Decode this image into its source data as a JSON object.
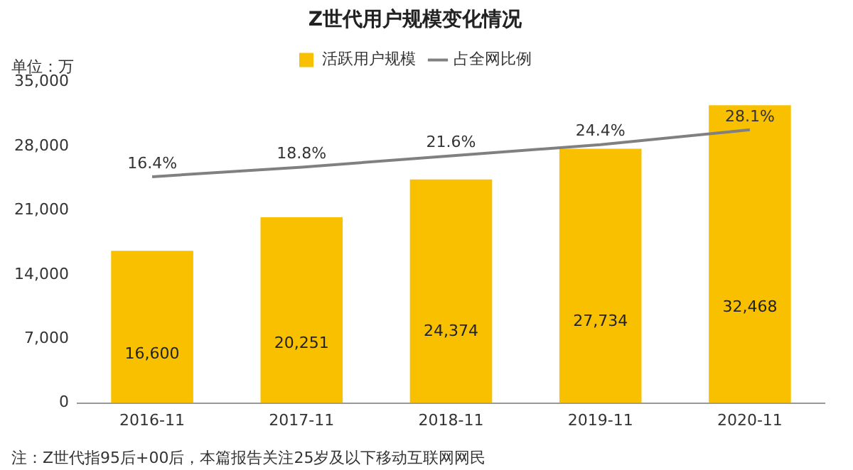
{
  "chart_data": {
    "type": "bar",
    "title": "Z世代用户规模变化情况",
    "ylabel": "单位：万",
    "categories": [
      "2016-11",
      "2017-11",
      "2018-11",
      "2019-11",
      "2020-11"
    ],
    "series": [
      {
        "name": "活跃用户规模",
        "type": "bar",
        "color": "#f9c000",
        "values": [
          16600,
          20251,
          24374,
          27734,
          32468
        ],
        "value_labels": [
          "16,600",
          "20,251",
          "24,374",
          "27,734",
          "32,468"
        ]
      },
      {
        "name": "占全网比例",
        "type": "line",
        "axis": "y2",
        "color": "#808080",
        "values": [
          16.4,
          18.8,
          21.6,
          24.4,
          28.1
        ],
        "value_labels": [
          "16.4%",
          "18.8%",
          "21.6%",
          "24.4%",
          "28.1%"
        ]
      }
    ],
    "ylim": [
      0,
      35000
    ],
    "yticks": [
      0,
      {
        "value": 7000,
        "label": "7,000"
      },
      {
        "value": 14000,
        "label": "14,000"
      },
      {
        "value": 21000,
        "label": "21,000"
      },
      {
        "value": 28000,
        "label": "28,000"
      },
      {
        "value": 35000,
        "label": "35,000"
      }
    ],
    "grid": false,
    "legend": "top",
    "marker": "none",
    "line_style": "solid",
    "annotations": [
      "注：Z世代指95后+00后，本篇报告关注25岁及以下移动互联网网民"
    ]
  }
}
